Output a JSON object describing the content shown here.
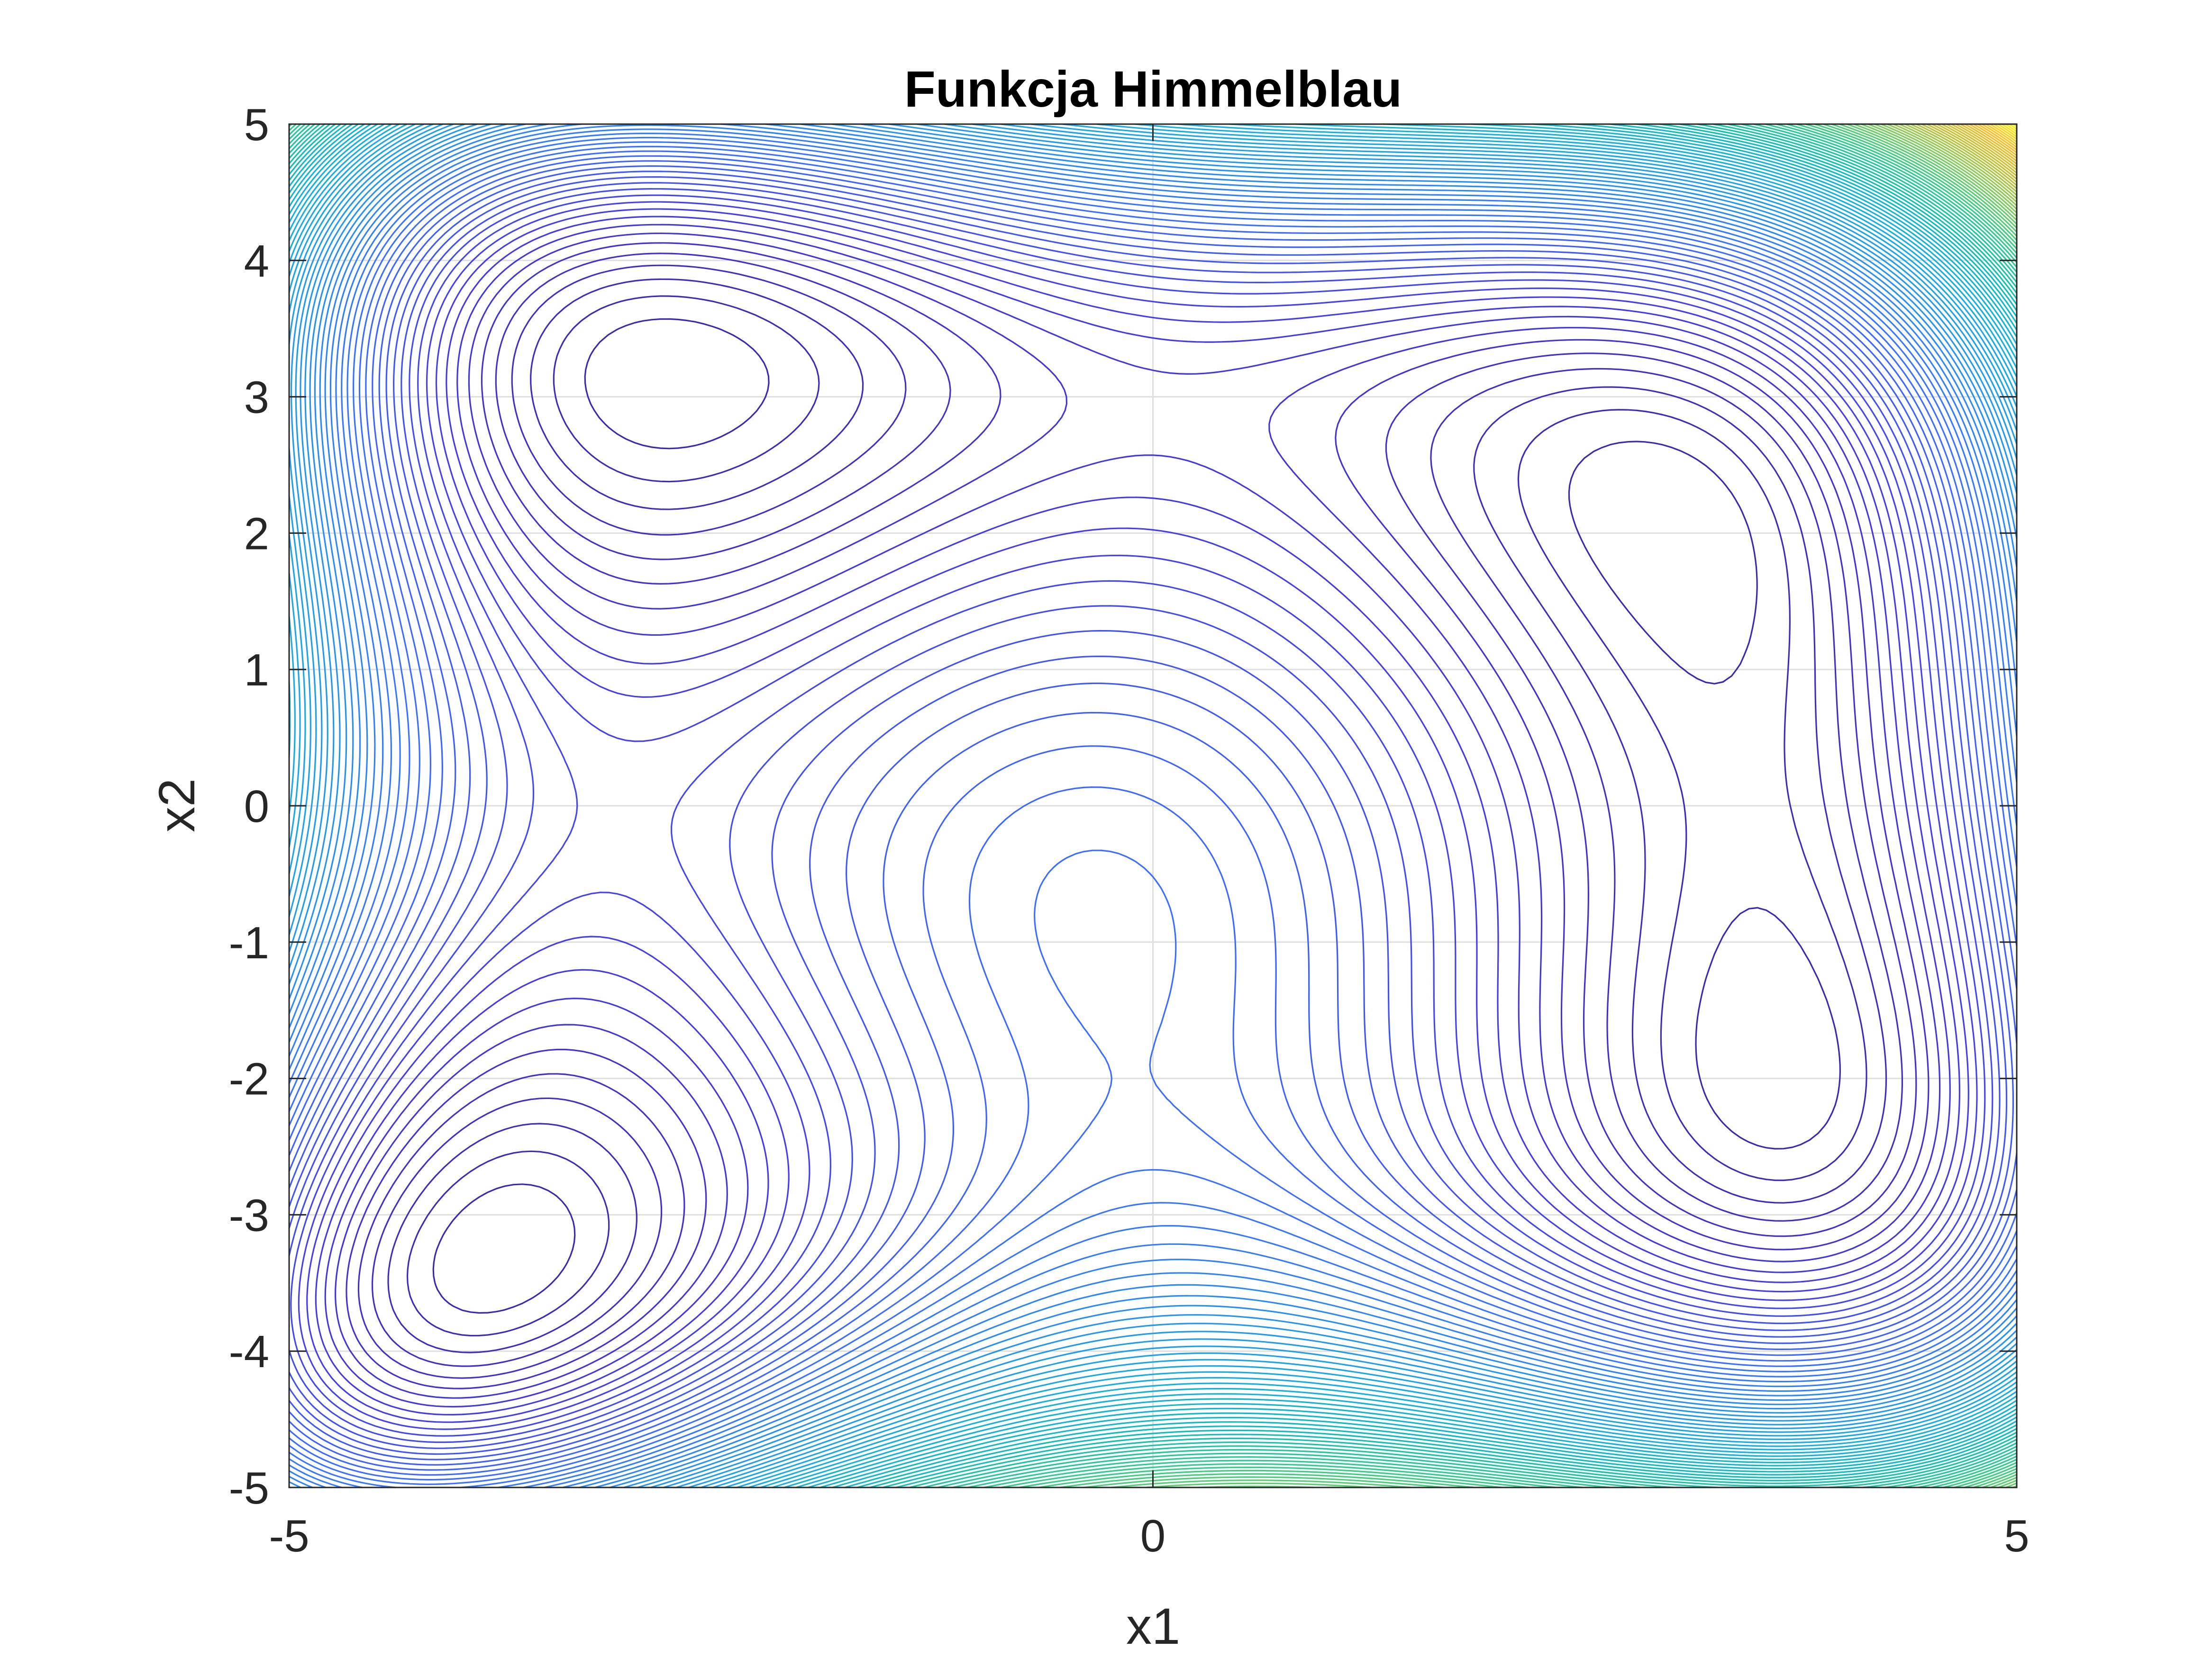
{
  "chart_data": {
    "type": "contour",
    "title": "Funkcja Himmelblau",
    "xlabel": "x1",
    "ylabel": "x2",
    "function": "(x1^2 + x2 - 11)^2 + (x1 + x2^2 - 7)^2",
    "xlim": [
      -5,
      5
    ],
    "ylim": [
      -5,
      5
    ],
    "x_ticks": [
      -5,
      0,
      5
    ],
    "x_tick_labels": [
      "-5",
      "0",
      "5"
    ],
    "y_ticks": [
      5,
      4,
      3,
      2,
      1,
      0,
      -1,
      -2,
      -3,
      -4,
      -5
    ],
    "y_tick_labels": [
      "5",
      "4",
      "3",
      "2",
      "1",
      "0",
      "-1",
      "-2",
      "-3",
      "-4",
      "-5"
    ],
    "grid": true,
    "colormap": "parula",
    "value_range": [
      0,
      890
    ],
    "minima": [
      {
        "x1": 3.0,
        "x2": 2.0
      },
      {
        "x1": -2.805,
        "x2": 3.131
      },
      {
        "x1": -3.779,
        "x2": -3.283
      },
      {
        "x1": 3.584,
        "x2": -1.848
      }
    ],
    "local_maximum": {
      "x1": -0.271,
      "x2": -0.923
    }
  },
  "colors": {
    "background": "#ffffff",
    "axis": "#262626",
    "grid": "#dfdfdf",
    "parula_low": "#3e26a8",
    "parula_mid": "#13beb8",
    "parula_high": "#f9fb0e"
  }
}
